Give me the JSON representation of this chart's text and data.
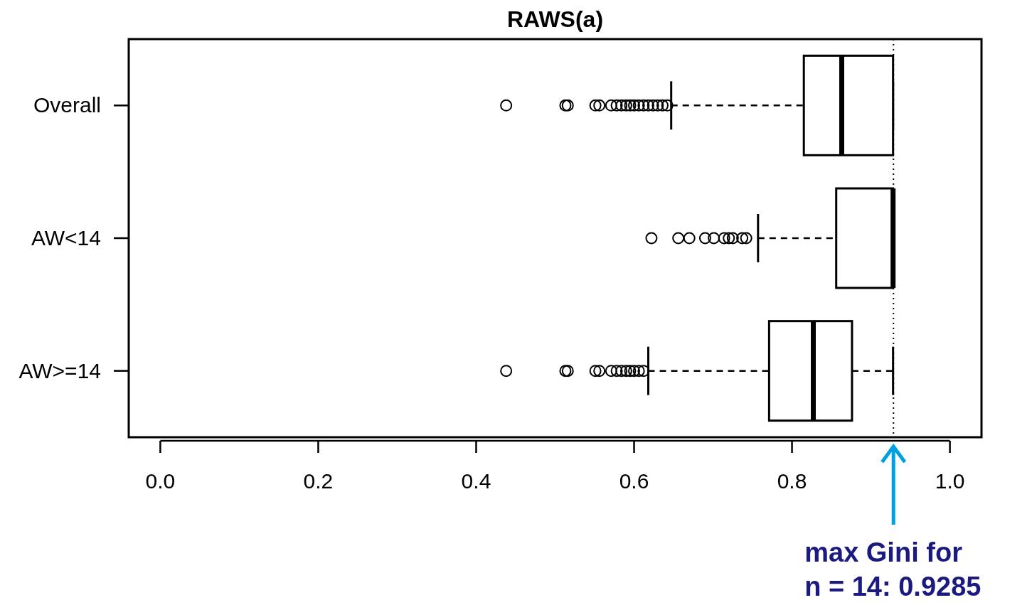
{
  "chart_data": {
    "type": "box",
    "orientation": "horizontal",
    "title": "RAWS(a)",
    "categories": [
      "Overall",
      "AW<14",
      "AW>=14"
    ],
    "boxes": [
      {
        "low": 0.647,
        "q1": 0.815,
        "median": 0.863,
        "q3": 0.928,
        "high": 0.928,
        "outliers": [
          0.438,
          0.513,
          0.516,
          0.551,
          0.556,
          0.571,
          0.578,
          0.584,
          0.59,
          0.595,
          0.6,
          0.606,
          0.612,
          0.618,
          0.624,
          0.63,
          0.636,
          0.642
        ]
      },
      {
        "low": 0.757,
        "q1": 0.856,
        "median": 0.928,
        "q3": 0.928,
        "high": 0.928,
        "outliers": [
          0.622,
          0.656,
          0.67,
          0.69,
          0.701,
          0.714,
          0.72,
          0.725,
          0.737,
          0.742
        ]
      },
      {
        "low": 0.618,
        "q1": 0.771,
        "median": 0.827,
        "q3": 0.876,
        "high": 0.928,
        "outliers": [
          0.438,
          0.513,
          0.516,
          0.551,
          0.556,
          0.571,
          0.578,
          0.584,
          0.59,
          0.595,
          0.6,
          0.606,
          0.612
        ]
      }
    ],
    "xlim": [
      -0.04,
      1.04
    ],
    "xticks": [
      {
        "value": 0,
        "label": "0.0"
      },
      0.2,
      0.4,
      0.6,
      0.8,
      {
        "value": 1,
        "label": "1.0"
      }
    ],
    "ref_lines": [
      {
        "axis": "x",
        "value": 0.9285,
        "color": "#000000",
        "line_style": "dotted"
      }
    ],
    "annotations": [
      "max Gini for n = 14: 0.9285"
    ]
  }
}
